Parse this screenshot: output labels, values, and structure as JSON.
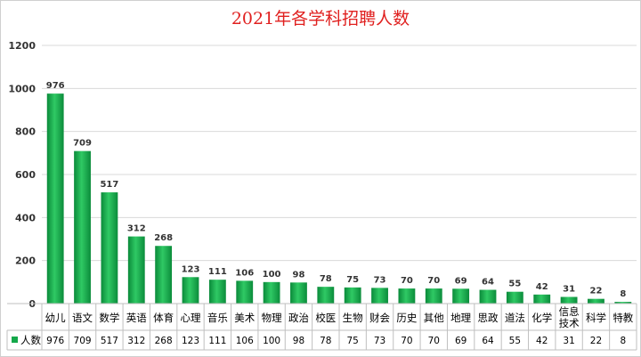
{
  "chart_data": {
    "type": "bar",
    "title": "2021年各学科招聘人数",
    "ylim": [
      0,
      1200
    ],
    "yticks": [
      0,
      200,
      400,
      600,
      800,
      1000,
      1200
    ],
    "grid": true,
    "legend_position": "bottom-left (data table)",
    "categories": [
      "幼儿",
      "语文",
      "数学",
      "英语",
      "体育",
      "心理",
      "音乐",
      "美术",
      "物理",
      "政治",
      "校医",
      "生物",
      "财会",
      "历史",
      "其他",
      "地理",
      "思政",
      "道法",
      "化学",
      "信息技术",
      "科学",
      "特教"
    ],
    "series": [
      {
        "name": "人数",
        "color": "#14a84a",
        "values": [
          976,
          709,
          517,
          312,
          268,
          123,
          111,
          106,
          100,
          98,
          78,
          75,
          73,
          70,
          70,
          69,
          64,
          55,
          42,
          31,
          22,
          8
        ]
      }
    ]
  }
}
